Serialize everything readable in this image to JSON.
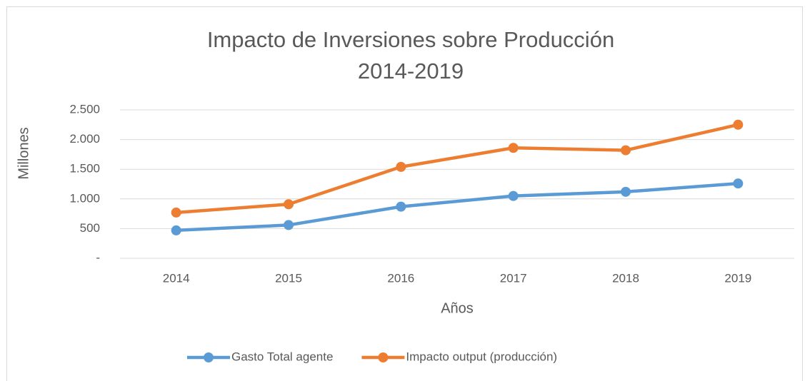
{
  "chart_data": {
    "type": "line",
    "title": "Impacto de Inversiones sobre Producción",
    "subtitle": "2014-2019",
    "x_label": "Años",
    "y_label": "Millones",
    "categories": [
      "2014",
      "2015",
      "2016",
      "2017",
      "2018",
      "2019"
    ],
    "series": [
      {
        "name": "Gasto Total agente",
        "color": "#5b9bd5",
        "values": [
          470,
          560,
          870,
          1050,
          1120,
          1260
        ]
      },
      {
        "name": "Impacto output (producción)",
        "color": "#ed7d31",
        "values": [
          770,
          910,
          1540,
          1860,
          1820,
          2250
        ]
      }
    ],
    "ylim": [
      0,
      2500
    ],
    "yticks": [
      {
        "value": 0,
        "label": "-"
      },
      500,
      {
        "value": 1000,
        "label": "1.000"
      },
      {
        "value": 1500,
        "label": "1.500"
      },
      {
        "value": 2000,
        "label": "2.000"
      },
      {
        "value": 2500,
        "label": "2.500"
      }
    ],
    "grid": true,
    "legend": "bottom"
  }
}
